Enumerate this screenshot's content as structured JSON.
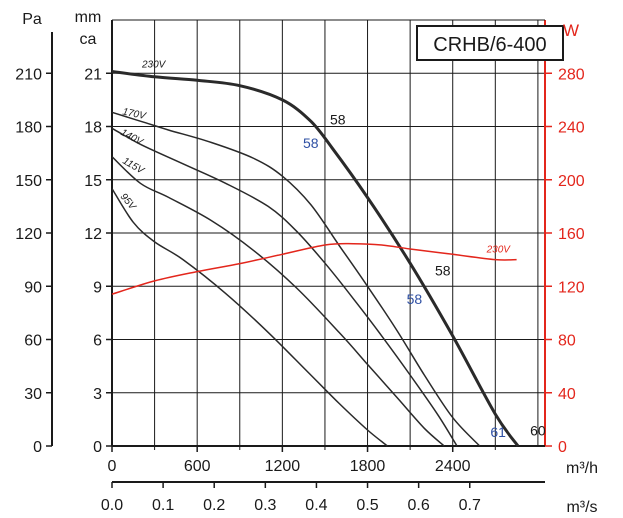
{
  "chart_data": {
    "type": "line",
    "title": "CRHB/6-400",
    "x_axis_primary": {
      "unit": "m³/h",
      "range": [
        0,
        3050
      ],
      "ticks": [
        0,
        600,
        1200,
        1800,
        2400
      ],
      "tick_labels": [
        "0",
        "600",
        "1200",
        "1800",
        "2400"
      ]
    },
    "x_axis_secondary": {
      "unit": "m³/s",
      "ticks": [
        0.0,
        0.1,
        0.2,
        0.3,
        0.4,
        0.5,
        0.6,
        0.7
      ],
      "tick_labels": [
        "0.0",
        "0.1",
        "0.2",
        "0.3",
        "0.4",
        "0.5",
        "0.6",
        "0.7"
      ]
    },
    "y_axis_pa": {
      "unit": "Pa",
      "ticks": [
        0,
        30,
        60,
        90,
        120,
        150,
        180,
        210
      ],
      "tick_labels": [
        "0",
        "30",
        "60",
        "90",
        "120",
        "150",
        "180",
        "210"
      ]
    },
    "y_axis_mm": {
      "unit_line1": "mm",
      "unit_line2": "ca",
      "range": [
        0,
        24
      ],
      "ticks": [
        0,
        3,
        6,
        9,
        12,
        15,
        18,
        21
      ],
      "tick_labels": [
        "0",
        "3",
        "6",
        "9",
        "12",
        "15",
        "18",
        "21"
      ]
    },
    "y_axis_power": {
      "unit": "W",
      "range": [
        0,
        320
      ],
      "ticks": [
        0,
        40,
        80,
        120,
        160,
        200,
        240,
        280
      ],
      "tick_labels": [
        "0",
        "40",
        "80",
        "120",
        "160",
        "200",
        "240",
        "280"
      ]
    },
    "grid": true,
    "pressure_series": [
      {
        "name": "230V",
        "x": [
          0,
          300,
          600,
          900,
          1200,
          1400,
          1550,
          1800,
          2100,
          2400,
          2700,
          2860
        ],
        "y": [
          21.1,
          20.8,
          20.6,
          20.3,
          19.5,
          18.3,
          16.8,
          14.0,
          10.3,
          6.2,
          1.8,
          0
        ]
      },
      {
        "name": "170V",
        "x": [
          0,
          200,
          400,
          700,
          1000,
          1200,
          1400,
          1600,
          1800,
          2000,
          2200,
          2400,
          2590
        ],
        "y": [
          18.8,
          18.3,
          17.8,
          17.1,
          16.2,
          15.2,
          13.6,
          11.3,
          9.0,
          6.6,
          4.0,
          1.6,
          0
        ]
      },
      {
        "name": "140V",
        "x": [
          0,
          200,
          500,
          800,
          1100,
          1300,
          1500,
          1700,
          1900,
          2100,
          2300,
          2430
        ],
        "y": [
          17.9,
          17.0,
          15.9,
          14.8,
          13.5,
          12.1,
          10.3,
          8.3,
          6.2,
          4.0,
          1.7,
          0
        ]
      },
      {
        "name": "115V",
        "x": [
          0,
          200,
          400,
          700,
          1000,
          1300,
          1600,
          1800,
          2000,
          2200,
          2340
        ],
        "y": [
          16.3,
          14.8,
          14.0,
          12.7,
          11.0,
          8.9,
          6.4,
          4.6,
          2.8,
          1.0,
          0
        ]
      },
      {
        "name": "95V",
        "x": [
          0,
          150,
          300,
          500,
          800,
          1100,
          1400,
          1600,
          1800,
          1940
        ],
        "y": [
          14.5,
          12.6,
          11.5,
          10.5,
          8.6,
          6.4,
          4.0,
          2.4,
          0.9,
          0
        ]
      }
    ],
    "power_series": [
      {
        "name": "230V",
        "x": [
          0,
          300,
          600,
          900,
          1200,
          1500,
          1700,
          1900,
          2100,
          2400,
          2700,
          2850
        ],
        "y": [
          114,
          124,
          131,
          137,
          144,
          151,
          152,
          151,
          148,
          144,
          140,
          140
        ]
      }
    ],
    "annotations": [
      {
        "text": "58",
        "x": 1590,
        "y": 18.1,
        "color": "#1a1a1a"
      },
      {
        "text": "58",
        "x": 1400,
        "y": 16.8,
        "color": "#2e4fa3"
      },
      {
        "text": "58",
        "x": 2330,
        "y": 9.6,
        "color": "#1a1a1a"
      },
      {
        "text": "58",
        "x": 2130,
        "y": 8.0,
        "color": "#2e4fa3"
      },
      {
        "text": "60",
        "x": 3000,
        "y": 0.6,
        "color": "#1a1a1a"
      },
      {
        "text": "61",
        "x": 2720,
        "y": 0.5,
        "color": "#2e4fa3"
      }
    ],
    "colors": {
      "pressure": "#2a2a2a",
      "power": "#e3261c",
      "blue_label": "#2e4fa3"
    }
  }
}
